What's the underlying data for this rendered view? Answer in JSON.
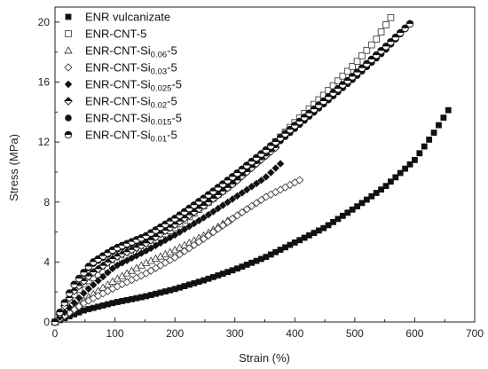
{
  "chart_data": {
    "type": "scatter",
    "title": "",
    "xlabel": "Strain (%)",
    "ylabel": "Stress (MPa)",
    "xlim": [
      0,
      700
    ],
    "ylim": [
      0,
      21
    ],
    "xticks": [
      0,
      100,
      200,
      300,
      400,
      500,
      600,
      700
    ],
    "yticks": [
      0,
      4,
      8,
      12,
      16,
      20
    ],
    "grid": false,
    "legend_position": "top-left",
    "series": [
      {
        "name": "ENR vulcanizate",
        "marker": "square-filled",
        "points": [
          [
            0,
            0
          ],
          [
            50,
            0.8
          ],
          [
            100,
            1.3
          ],
          [
            150,
            1.7
          ],
          [
            200,
            2.2
          ],
          [
            250,
            2.8
          ],
          [
            300,
            3.5
          ],
          [
            350,
            4.3
          ],
          [
            400,
            5.3
          ],
          [
            450,
            6.3
          ],
          [
            500,
            7.6
          ],
          [
            550,
            9.0
          ],
          [
            600,
            10.8
          ],
          [
            630,
            12.5
          ],
          [
            662,
            14.5
          ]
        ]
      },
      {
        "name": "ENR-CNT-5",
        "marker": "square-open",
        "points": [
          [
            0,
            0
          ],
          [
            25,
            1.5
          ],
          [
            50,
            2.6
          ],
          [
            100,
            3.9
          ],
          [
            150,
            5.0
          ],
          [
            200,
            6.3
          ],
          [
            250,
            7.8
          ],
          [
            300,
            9.4
          ],
          [
            350,
            11.3
          ],
          [
            400,
            13.3
          ],
          [
            450,
            15.2
          ],
          [
            500,
            17.2
          ],
          [
            535,
            18.8
          ],
          [
            565,
            20.6
          ]
        ]
      },
      {
        "name": "ENR-CNT-Si0.06-5",
        "marker": "triangle-open",
        "points": [
          [
            0,
            0
          ],
          [
            50,
            1.5
          ],
          [
            100,
            2.8
          ],
          [
            150,
            3.9
          ],
          [
            200,
            4.8
          ],
          [
            250,
            5.8
          ],
          [
            290,
            6.8
          ]
        ]
      },
      {
        "name": "ENR-CNT-Si0.03-5",
        "marker": "diamond-open",
        "points": [
          [
            0,
            0
          ],
          [
            50,
            1.3
          ],
          [
            100,
            2.3
          ],
          [
            150,
            3.2
          ],
          [
            200,
            4.3
          ],
          [
            250,
            5.6
          ],
          [
            300,
            7.0
          ],
          [
            350,
            8.3
          ],
          [
            410,
            9.5
          ]
        ]
      },
      {
        "name": "ENR-CNT-Si0.025-5",
        "marker": "diamond-filled",
        "points": [
          [
            0,
            0
          ],
          [
            50,
            2.0
          ],
          [
            100,
            3.7
          ],
          [
            150,
            4.7
          ],
          [
            200,
            5.8
          ],
          [
            250,
            7.0
          ],
          [
            300,
            8.3
          ],
          [
            350,
            9.6
          ],
          [
            380,
            10.7
          ]
        ]
      },
      {
        "name": "ENR-CNT-Si0.02-5",
        "marker": "diamond-half",
        "points": [
          [
            0,
            0
          ],
          [
            30,
            2.0
          ],
          [
            60,
            3.2
          ],
          [
            100,
            4.3
          ],
          [
            150,
            5.2
          ],
          [
            200,
            6.5
          ],
          [
            250,
            7.8
          ],
          [
            300,
            9.3
          ],
          [
            340,
            10.7
          ],
          [
            370,
            11.7
          ]
        ]
      },
      {
        "name": "ENR-CNT-Si0.015-5",
        "marker": "circle-filled",
        "points": [
          [
            0,
            0
          ],
          [
            30,
            2.4
          ],
          [
            60,
            3.8
          ],
          [
            100,
            4.8
          ],
          [
            150,
            5.6
          ],
          [
            200,
            6.8
          ],
          [
            250,
            8.2
          ],
          [
            300,
            9.6
          ],
          [
            350,
            11.2
          ],
          [
            400,
            12.9
          ],
          [
            450,
            14.6
          ],
          [
            500,
            16.3
          ],
          [
            550,
            18.1
          ],
          [
            590,
            19.8
          ]
        ]
      },
      {
        "name": "ENR-CNT-Si0.01-5",
        "marker": "circle-half",
        "points": [
          [
            0,
            0
          ],
          [
            30,
            2.4
          ],
          [
            60,
            3.9
          ],
          [
            100,
            4.9
          ],
          [
            150,
            5.7
          ],
          [
            200,
            6.9
          ],
          [
            250,
            8.3
          ],
          [
            300,
            9.8
          ],
          [
            350,
            11.4
          ],
          [
            400,
            13.1
          ],
          [
            450,
            14.8
          ],
          [
            500,
            16.5
          ],
          [
            550,
            18.3
          ],
          [
            595,
            20.0
          ]
        ]
      }
    ]
  },
  "legend": [
    {
      "prefix": "ENR vulcanizate",
      "sub": "",
      "suffix": ""
    },
    {
      "prefix": "ENR-CNT-5",
      "sub": "",
      "suffix": ""
    },
    {
      "prefix": "ENR-CNT-Si",
      "sub": "0.06",
      "suffix": "-5"
    },
    {
      "prefix": "ENR-CNT-Si",
      "sub": "0.03",
      "suffix": "-5"
    },
    {
      "prefix": "ENR-CNT-Si",
      "sub": "0.025",
      "suffix": "-5"
    },
    {
      "prefix": "ENR-CNT-Si",
      "sub": "0.02",
      "suffix": "-5"
    },
    {
      "prefix": "ENR-CNT-Si",
      "sub": "0.015",
      "suffix": "-5"
    },
    {
      "prefix": "ENR-CNT-Si",
      "sub": "0.01",
      "suffix": "-5"
    }
  ]
}
